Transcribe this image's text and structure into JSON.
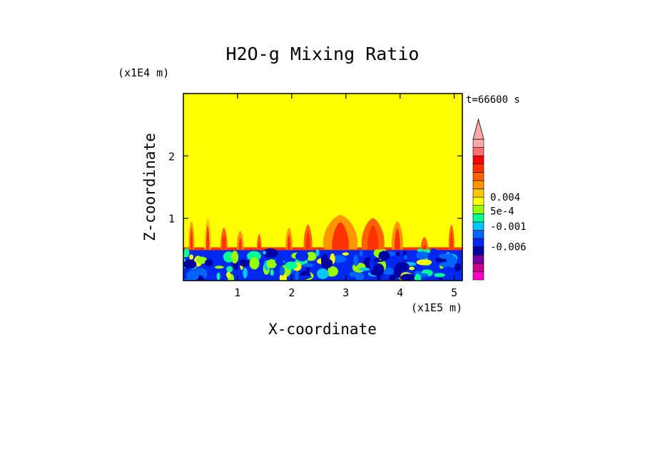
{
  "chart_data": {
    "type": "heatmap",
    "title": "H2O-g Mixing Ratio",
    "time_label": "t=66600 s",
    "xlabel": "X-coordinate",
    "ylabel": "Z-coordinate",
    "x_unit": "(x1E5 m)",
    "y_unit": "(x1E4 m)",
    "xlim": [
      0,
      5.15
    ],
    "ylim": [
      0,
      3.0
    ],
    "x_ticks": [
      1,
      2,
      3,
      4,
      5
    ],
    "y_ticks": [
      1,
      2
    ],
    "x_tick_labels": [
      "1",
      "2",
      "3",
      "4",
      "5"
    ],
    "y_tick_labels": [
      "1",
      "2"
    ],
    "background_color": "#ffff00",
    "boundary_layer_top": 0.5,
    "colorbar": {
      "colors": [
        "#ff00c8",
        "#c80090",
        "#7800a0",
        "#0000a0",
        "#0028f0",
        "#0064ff",
        "#00c8ff",
        "#00ff96",
        "#96ff00",
        "#ffff00",
        "#ffc800",
        "#ff9600",
        "#ff6400",
        "#ff3200",
        "#ff0000",
        "#ff6e6e",
        "#ffaaaa"
      ],
      "labels": [
        {
          "text": "-0.006",
          "value": -0.006
        },
        {
          "text": "-0.001",
          "value": -0.001
        },
        {
          "text": "5e-4",
          "value": 0.0005
        },
        {
          "text": "0.004",
          "value": 0.004
        }
      ],
      "extend": "max"
    },
    "features": [
      {
        "type": "plume",
        "x": 0.15,
        "z": 0.95,
        "width": 0.1,
        "color": "#ff9600"
      },
      {
        "type": "plume",
        "x": 0.45,
        "z": 1.0,
        "width": 0.12,
        "color": "#ffc800"
      },
      {
        "type": "plume",
        "x": 0.75,
        "z": 0.85,
        "width": 0.12,
        "color": "#ff6400"
      },
      {
        "type": "plume",
        "x": 1.05,
        "z": 0.8,
        "width": 0.12,
        "color": "#ff9600"
      },
      {
        "type": "plume",
        "x": 1.4,
        "z": 0.75,
        "width": 0.08,
        "color": "#ff6400"
      },
      {
        "type": "plume",
        "x": 1.95,
        "z": 0.85,
        "width": 0.12,
        "color": "#ff9600"
      },
      {
        "type": "plume",
        "x": 2.3,
        "z": 0.9,
        "width": 0.15,
        "color": "#ff6400"
      },
      {
        "type": "plume",
        "x": 2.9,
        "z": 1.05,
        "width": 0.6,
        "color": "#ff9600"
      },
      {
        "type": "plume",
        "x": 3.5,
        "z": 1.0,
        "width": 0.4,
        "color": "#ff6400"
      },
      {
        "type": "plume",
        "x": 3.95,
        "z": 0.95,
        "width": 0.2,
        "color": "#ff9600"
      },
      {
        "type": "plume",
        "x": 4.45,
        "z": 0.7,
        "width": 0.12,
        "color": "#ff6400"
      },
      {
        "type": "plume",
        "x": 4.95,
        "z": 0.9,
        "width": 0.1,
        "color": "#ff6400"
      }
    ]
  }
}
